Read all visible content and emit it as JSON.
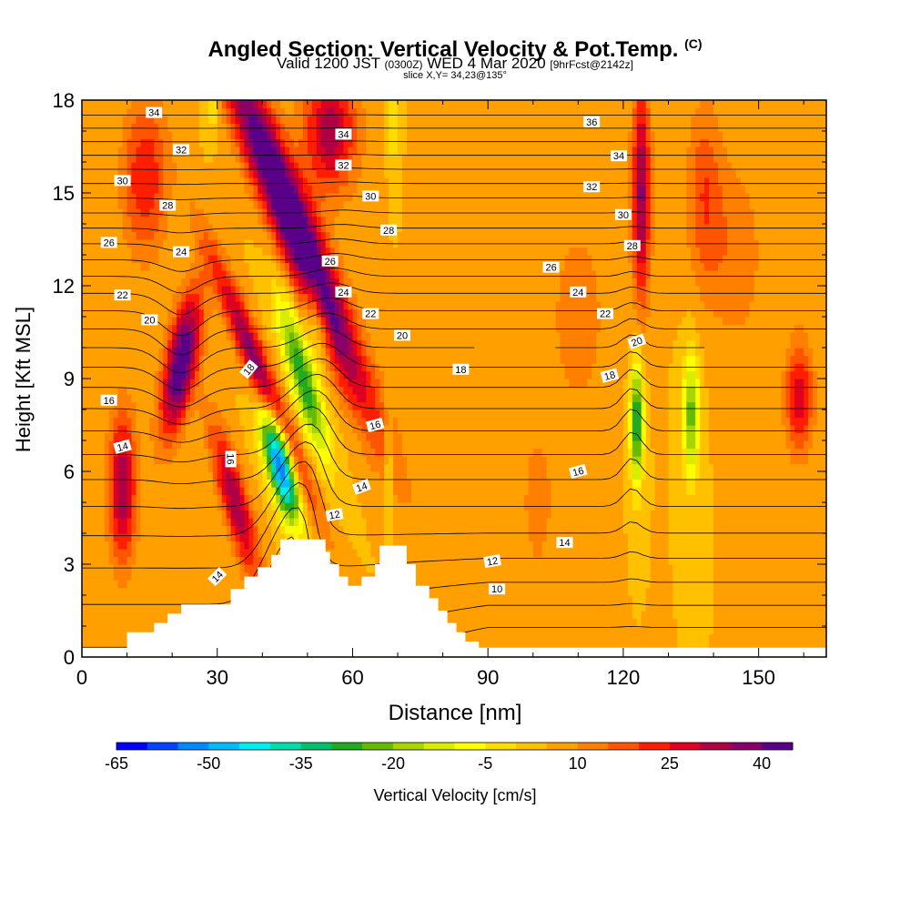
{
  "header": {
    "title": "Angled Section: Vertical Velocity & Pot.Temp.",
    "title_unit": "(C)",
    "valid_prefix": "Valid 1200 JST",
    "valid_zulu": "(0300Z)",
    "valid_date": "WED 4 Mar 2020",
    "forecast": "[9hrFcst@2142z]",
    "slice": "slice X,Y= 34,23@135°"
  },
  "chart_data": {
    "type": "heatmap",
    "title": "Angled Section: Vertical Velocity & Pot.Temp.",
    "xlabel": "Distance [nm]",
    "ylabel": "Height [Kft MSL]",
    "xlim": [
      0,
      165
    ],
    "ylim": [
      0,
      18
    ],
    "x_ticks": [
      0,
      30,
      60,
      90,
      120,
      150
    ],
    "y_ticks": [
      0,
      3,
      6,
      9,
      12,
      15,
      18
    ],
    "colorbar": {
      "label": "Vertical Velocity [cm/s]",
      "min": -65,
      "max": 45,
      "step": 5,
      "tick_labels": [
        -65,
        -50,
        -35,
        -20,
        -5,
        10,
        25,
        40
      ],
      "colors": [
        "#0000ff",
        "#0044ff",
        "#0088ff",
        "#00bbff",
        "#00eeee",
        "#00ddaa",
        "#00c070",
        "#22aa22",
        "#66bb00",
        "#a8d400",
        "#d8ee00",
        "#ffff00",
        "#ffdd00",
        "#ffc000",
        "#ffa000",
        "#ff8000",
        "#ff5500",
        "#ff1e00",
        "#dd0022",
        "#b00045",
        "#8a0068",
        "#5a0088"
      ]
    },
    "terrain_profile": {
      "x": [
        0,
        3,
        10,
        13,
        16,
        19,
        22,
        27,
        33,
        36,
        39,
        42,
        44,
        47,
        54,
        55,
        57,
        59,
        61,
        62,
        64,
        65,
        66,
        67,
        70,
        72,
        74,
        77,
        79,
        81,
        83,
        85,
        88,
        165
      ],
      "height": [
        0.3,
        0.3,
        0.8,
        0.8,
        1.1,
        1.4,
        1.7,
        1.7,
        2.2,
        2.6,
        2.9,
        3.3,
        3.8,
        3.8,
        3.4,
        3.0,
        2.6,
        2.3,
        2.3,
        2.6,
        2.6,
        3.0,
        3.6,
        3.6,
        3.6,
        3.0,
        2.3,
        1.9,
        1.5,
        1.1,
        0.8,
        0.5,
        0.3,
        0.3
      ]
    },
    "vertical_velocity_features": [
      {
        "x": 47,
        "z": 14,
        "sx": 5,
        "sz": 6,
        "w": 50,
        "shear": -0.9
      },
      {
        "x": 40,
        "z": 9,
        "sx": 3,
        "sz": 4,
        "w": 35,
        "shear": -0.9
      },
      {
        "x": 34,
        "z": 5,
        "sx": 3,
        "sz": 2.5,
        "w": 30,
        "shear": -0.6
      },
      {
        "x": 55,
        "z": 17,
        "sx": 6,
        "sz": 2,
        "w": 28,
        "shear": 0
      },
      {
        "x": 22,
        "z": 9.5,
        "sx": 3.5,
        "sz": 2.3,
        "w": 42,
        "shear": 0.4
      },
      {
        "x": 9,
        "z": 5.5,
        "sx": 3,
        "sz": 2.5,
        "w": 30,
        "shear": 0
      },
      {
        "x": 14,
        "z": 15.5,
        "sx": 5,
        "sz": 2.5,
        "w": 20,
        "shear": 0
      },
      {
        "x": 124,
        "z": 15,
        "sx": 2,
        "sz": 3.5,
        "w": 32,
        "shear": 0
      },
      {
        "x": 138,
        "z": 15,
        "sx": 4,
        "sz": 3,
        "w": 14,
        "shear": 0
      },
      {
        "x": 159,
        "z": 8.4,
        "sx": 3,
        "sz": 1.8,
        "w": 24,
        "shear": 0
      },
      {
        "x": 145,
        "z": 13,
        "sx": 6,
        "sz": 3,
        "w": 9,
        "shear": 0
      },
      {
        "x": 110,
        "z": 11,
        "sx": 8,
        "sz": 4,
        "w": 7,
        "shear": 0
      },
      {
        "x": 101,
        "z": 5,
        "sx": 3,
        "sz": 2,
        "w": 10,
        "shear": 0
      },
      {
        "x": 44,
        "z": 6.3,
        "sx": 3,
        "sz": 1.8,
        "w": -65,
        "shear": -0.5
      },
      {
        "x": 49,
        "z": 9,
        "sx": 3,
        "sz": 2.5,
        "w": -35,
        "shear": -0.6
      },
      {
        "x": 52,
        "z": 11,
        "sx": 2.5,
        "sz": 1.5,
        "w": -18,
        "shear": -0.3
      },
      {
        "x": 123,
        "z": 7.6,
        "sx": 1.4,
        "sz": 2,
        "w": -38,
        "shear": 0
      },
      {
        "x": 135,
        "z": 7.8,
        "sx": 1.8,
        "sz": 2,
        "w": -28,
        "shear": 0
      },
      {
        "x": 68,
        "z": 6,
        "sx": 0.8,
        "sz": 2,
        "w": -15,
        "shear": 0
      },
      {
        "x": 69,
        "z": 17.5,
        "sx": 1,
        "sz": 1.5,
        "w": -12,
        "shear": 0
      },
      {
        "x": 29,
        "z": 17.8,
        "sx": 1.5,
        "sz": 0.8,
        "w": -12,
        "shear": 0
      }
    ],
    "theta_contours": {
      "levels_degC": [
        9,
        10,
        11,
        12,
        13,
        14,
        15,
        16,
        17,
        18,
        19,
        20,
        21,
        22,
        23,
        24,
        25,
        26,
        27,
        28,
        29,
        30,
        31,
        32,
        33,
        34,
        35,
        36
      ],
      "labels": [
        {
          "t": "34",
          "x": 16,
          "z": 17.6,
          "rot": 0
        },
        {
          "t": "32",
          "x": 22,
          "z": 16.4,
          "rot": 0
        },
        {
          "t": "30",
          "x": 9,
          "z": 15.4,
          "rot": 0
        },
        {
          "t": "28",
          "x": 19,
          "z": 14.6,
          "rot": 0
        },
        {
          "t": "26",
          "x": 6,
          "z": 13.4,
          "rot": 0
        },
        {
          "t": "24",
          "x": 22,
          "z": 13.1,
          "rot": 0
        },
        {
          "t": "22",
          "x": 9,
          "z": 11.7,
          "rot": 0
        },
        {
          "t": "20",
          "x": 15,
          "z": 10.9,
          "rot": 0
        },
        {
          "t": "18",
          "x": 37,
          "z": 9.3,
          "rot": -50
        },
        {
          "t": "16",
          "x": 6,
          "z": 8.3,
          "rot": 0
        },
        {
          "t": "14",
          "x": 9,
          "z": 6.8,
          "rot": -15
        },
        {
          "t": "16",
          "x": 33,
          "z": 6.4,
          "rot": 90
        },
        {
          "t": "14",
          "x": 30,
          "z": 2.6,
          "rot": -45
        },
        {
          "t": "34",
          "x": 58,
          "z": 16.9,
          "rot": 0
        },
        {
          "t": "32",
          "x": 58,
          "z": 15.9,
          "rot": 0
        },
        {
          "t": "30",
          "x": 64,
          "z": 14.9,
          "rot": 0
        },
        {
          "t": "28",
          "x": 68,
          "z": 13.8,
          "rot": 0
        },
        {
          "t": "26",
          "x": 55,
          "z": 12.8,
          "rot": 0
        },
        {
          "t": "24",
          "x": 58,
          "z": 11.8,
          "rot": 0
        },
        {
          "t": "22",
          "x": 64,
          "z": 11.1,
          "rot": 0
        },
        {
          "t": "20",
          "x": 71,
          "z": 10.4,
          "rot": 0
        },
        {
          "t": "18",
          "x": 84,
          "z": 9.3,
          "rot": 0
        },
        {
          "t": "16",
          "x": 65,
          "z": 7.5,
          "rot": -15
        },
        {
          "t": "14",
          "x": 62,
          "z": 5.5,
          "rot": -20
        },
        {
          "t": "12",
          "x": 56,
          "z": 4.6,
          "rot": -10
        },
        {
          "t": "36",
          "x": 113,
          "z": 17.3,
          "rot": 0
        },
        {
          "t": "34",
          "x": 119,
          "z": 16.2,
          "rot": 0
        },
        {
          "t": "32",
          "x": 113,
          "z": 15.2,
          "rot": 0
        },
        {
          "t": "30",
          "x": 120,
          "z": 14.3,
          "rot": 0
        },
        {
          "t": "28",
          "x": 122,
          "z": 13.3,
          "rot": 0
        },
        {
          "t": "26",
          "x": 104,
          "z": 12.6,
          "rot": 0
        },
        {
          "t": "24",
          "x": 110,
          "z": 11.8,
          "rot": 0
        },
        {
          "t": "22",
          "x": 116,
          "z": 11.1,
          "rot": 0
        },
        {
          "t": "20",
          "x": 123,
          "z": 10.2,
          "rot": -20
        },
        {
          "t": "18",
          "x": 117,
          "z": 9.1,
          "rot": -15
        },
        {
          "t": "16",
          "x": 110,
          "z": 6.0,
          "rot": -15
        },
        {
          "t": "14",
          "x": 107,
          "z": 3.7,
          "rot": 0
        },
        {
          "t": "12",
          "x": 91,
          "z": 3.1,
          "rot": -10
        },
        {
          "t": "10",
          "x": 92,
          "z": 2.2,
          "rot": 0
        }
      ]
    },
    "grid": false,
    "legend": "colorbar-bottom"
  }
}
